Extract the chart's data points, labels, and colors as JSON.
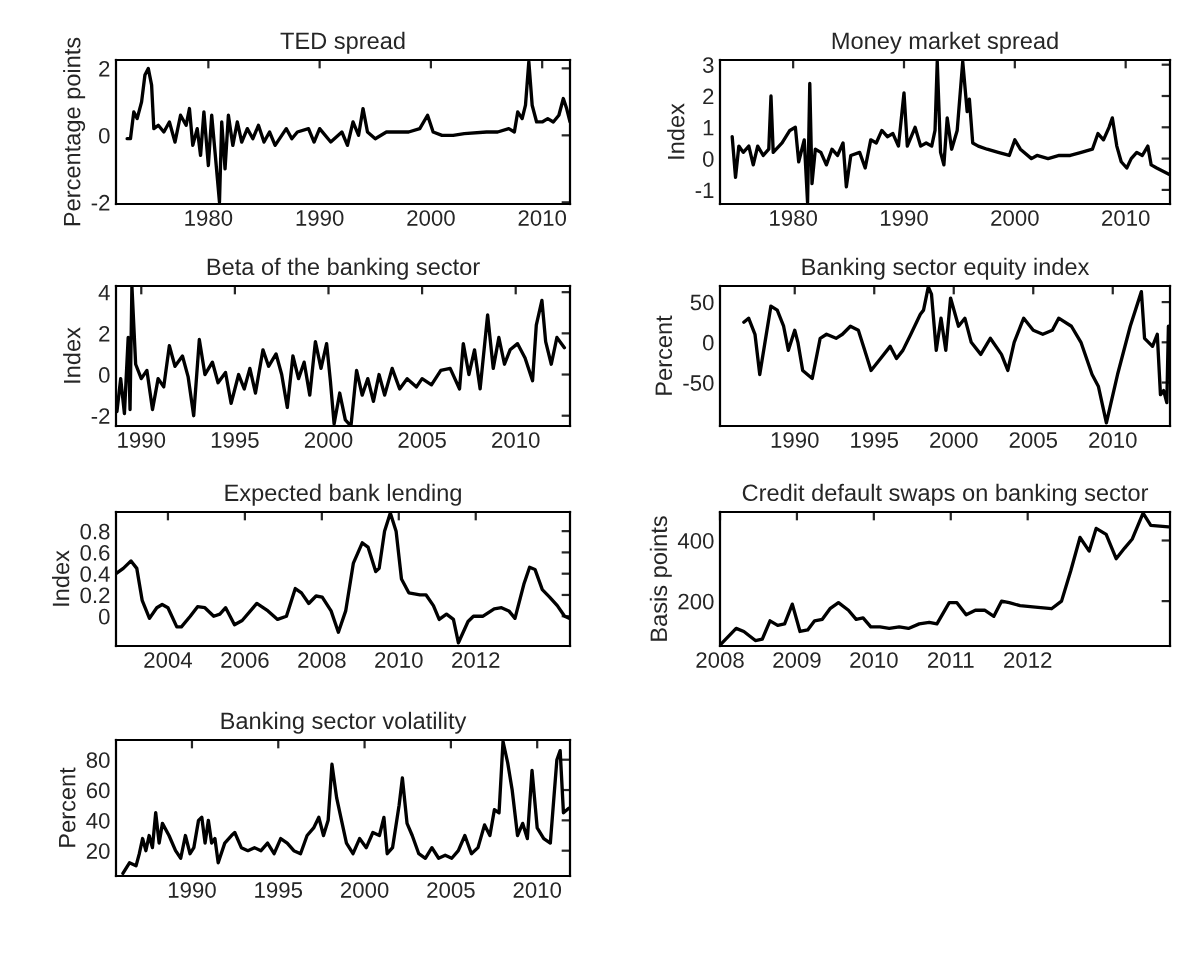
{
  "chart_data": [
    {
      "type": "line",
      "title": "TED spread",
      "ylabel": "Percentage points",
      "xlim": [
        1971.7,
        2012.5
      ],
      "ylim": [
        -2.05,
        2.25
      ],
      "xticks": [
        1980,
        1990,
        2000,
        2010
      ],
      "yticks": [
        -2,
        0,
        2
      ],
      "grid": false,
      "x": [
        1972.7,
        1973.0,
        1973.3,
        1973.6,
        1974.0,
        1974.3,
        1974.6,
        1974.9,
        1975.1,
        1975.5,
        1976,
        1976.5,
        1977,
        1977.5,
        1978,
        1978.3,
        1978.6,
        1979,
        1979.3,
        1979.6,
        1980,
        1980.3,
        1980.6,
        1981,
        1981.2,
        1981.5,
        1981.8,
        1982.2,
        1982.6,
        1983,
        1983.5,
        1984,
        1984.5,
        1985,
        1985.5,
        1986,
        1987,
        1987.5,
        1988,
        1989,
        1989.5,
        1990,
        1991,
        1992,
        1992.5,
        1993,
        1993.5,
        1993.9,
        1994.3,
        1995,
        1996,
        1997,
        1998,
        1999,
        1999.7,
        2000.2,
        2001,
        2002,
        2003,
        2005,
        2006,
        2007,
        2007.5,
        2007.8,
        2008.2,
        2008.5,
        2008.8,
        2009.1,
        2009.5,
        2010,
        2010.5,
        2011,
        2011.5,
        2011.9,
        2012.2,
        2012.5
      ],
      "series": [
        {
          "color": "#000000",
          "values": [
            -0.1,
            -0.1,
            0.7,
            0.5,
            1.0,
            1.8,
            2.0,
            1.5,
            0.2,
            0.3,
            0.1,
            0.4,
            -0.2,
            0.6,
            0.3,
            0.8,
            -0.3,
            0.2,
            -0.6,
            0.7,
            -0.9,
            0.6,
            -0.5,
            -2.0,
            0.4,
            -1.0,
            0.6,
            -0.3,
            0.4,
            -0.2,
            0.2,
            -0.1,
            0.3,
            -0.2,
            0.1,
            -0.3,
            0.2,
            -0.1,
            0.1,
            0.2,
            -0.2,
            0.2,
            -0.2,
            0.1,
            -0.3,
            0.4,
            0.0,
            0.8,
            0.1,
            -0.1,
            0.1,
            0.1,
            0.1,
            0.2,
            0.6,
            0.1,
            0.0,
            0.0,
            0.05,
            0.1,
            0.1,
            0.2,
            0.1,
            0.7,
            0.5,
            0.9,
            2.2,
            0.9,
            0.4,
            0.4,
            0.5,
            0.4,
            0.6,
            1.1,
            0.8,
            0.4
          ]
        }
      ]
    },
    {
      "type": "line",
      "title": "Money market spread",
      "ylabel": "Index",
      "xlim": [
        1973.4,
        2014.0
      ],
      "ylim": [
        -1.45,
        3.15
      ],
      "xticks": [
        1980,
        1990,
        2000,
        2010
      ],
      "yticks": [
        -1,
        0,
        1,
        2,
        3
      ],
      "grid": false,
      "x": [
        1974.5,
        1974.8,
        1975.1,
        1975.5,
        1976,
        1976.4,
        1976.8,
        1977.3,
        1977.8,
        1978.0,
        1978.2,
        1979,
        1979.7,
        1980.2,
        1980.5,
        1981,
        1981.3,
        1981.5,
        1981.7,
        1982,
        1982.5,
        1983,
        1983.5,
        1984,
        1984.5,
        1984.8,
        1985.2,
        1986,
        1986.5,
        1987,
        1987.5,
        1988,
        1988.5,
        1989,
        1989.5,
        1990,
        1990.3,
        1991,
        1991.5,
        1992,
        1992.5,
        1992.8,
        1993.0,
        1993.3,
        1993.6,
        1993.9,
        1994.3,
        1994.8,
        1995.3,
        1995.7,
        1995.9,
        1996.2,
        1996.7,
        1997.5,
        1998.5,
        1999.5,
        2000,
        2000.5,
        2001.5,
        2002,
        2003,
        2004,
        2005,
        2006,
        2007,
        2007.5,
        2008,
        2008.5,
        2008.8,
        2009.2,
        2009.6,
        2010.1,
        2010.5,
        2011,
        2011.5,
        2012.0,
        2012.3,
        2012.8,
        2013.9
      ],
      "series": [
        {
          "color": "#000000",
          "values": [
            0.7,
            -0.6,
            0.4,
            0.2,
            0.4,
            -0.2,
            0.4,
            0.1,
            0.3,
            2.0,
            0.2,
            0.5,
            0.9,
            1.0,
            -0.1,
            0.6,
            -1.4,
            2.4,
            -0.8,
            0.3,
            0.2,
            -0.2,
            0.3,
            0.1,
            0.5,
            -0.9,
            0.1,
            0.2,
            -0.3,
            0.6,
            0.5,
            0.9,
            0.7,
            0.8,
            0.4,
            2.1,
            0.4,
            1.0,
            0.4,
            0.5,
            0.4,
            0.9,
            3.1,
            0.2,
            -0.2,
            1.3,
            0.3,
            0.9,
            3.1,
            1.5,
            1.9,
            0.5,
            0.4,
            0.3,
            0.2,
            0.1,
            0.6,
            0.3,
            0.0,
            0.1,
            0.0,
            0.1,
            0.1,
            0.2,
            0.3,
            0.8,
            0.6,
            1.0,
            1.3,
            0.4,
            -0.1,
            -0.3,
            0.0,
            0.2,
            0.1,
            0.4,
            -0.2,
            -0.3,
            -0.5
          ]
        }
      ]
    },
    {
      "type": "line",
      "title": "Beta of the banking sector",
      "ylabel": "Index",
      "xlim": [
        1988.65,
        2012.9
      ],
      "ylim": [
        -2.5,
        4.3
      ],
      "xticks": [
        1990,
        1995,
        2000,
        2005,
        2010
      ],
      "yticks": [
        -2,
        0,
        2,
        4
      ],
      "grid": false,
      "x": [
        1988.7,
        1988.9,
        1989.1,
        1989.3,
        1989.4,
        1989.5,
        1989.7,
        1990,
        1990.3,
        1990.6,
        1990.9,
        1991.2,
        1991.5,
        1991.8,
        1992.2,
        1992.5,
        1992.8,
        1993.1,
        1993.4,
        1993.8,
        1994.1,
        1994.5,
        1994.8,
        1995.2,
        1995.5,
        1995.8,
        1996.1,
        1996.5,
        1996.8,
        1997.2,
        1997.5,
        1997.8,
        1998.1,
        1998.4,
        1998.7,
        1999,
        1999.3,
        1999.6,
        1999.9,
        2000.1,
        2000.3,
        2000.6,
        2000.9,
        2001.2,
        2001.5,
        2001.8,
        2002.1,
        2002.4,
        2002.7,
        2003,
        2003.4,
        2003.8,
        2004.2,
        2004.7,
        2005,
        2005.5,
        2006,
        2006.5,
        2007,
        2007.2,
        2007.5,
        2007.8,
        2008.1,
        2008.5,
        2008.8,
        2009.1,
        2009.4,
        2009.7,
        2010.1,
        2010.5,
        2010.9,
        2011.1,
        2011.4,
        2011.6,
        2011.9,
        2012.2,
        2012.6
      ],
      "series": [
        {
          "color": "#000000",
          "values": [
            -1.8,
            -0.2,
            -1.9,
            1.8,
            -1.7,
            4.3,
            0.5,
            -0.2,
            0.2,
            -1.7,
            -0.2,
            -0.6,
            1.4,
            0.4,
            0.9,
            -0.1,
            -2.0,
            1.7,
            0.0,
            0.6,
            -0.4,
            0.1,
            -1.4,
            0.0,
            -0.7,
            0.3,
            -0.9,
            1.2,
            0.4,
            1.0,
            0.0,
            -1.6,
            0.9,
            -0.2,
            0.6,
            -1.0,
            1.6,
            0.3,
            1.5,
            -0.3,
            -2.4,
            -0.9,
            -2.2,
            -2.5,
            0.2,
            -1.0,
            -0.2,
            -1.3,
            0.0,
            -1.0,
            0.3,
            -0.7,
            -0.2,
            -0.6,
            -0.2,
            -0.5,
            0.2,
            0.3,
            -0.7,
            1.5,
            0.0,
            1.2,
            -0.7,
            2.9,
            0.3,
            1.8,
            0.5,
            1.2,
            1.5,
            0.8,
            -0.3,
            2.4,
            3.6,
            1.6,
            0.5,
            1.8,
            1.3
          ]
        }
      ]
    },
    {
      "type": "line",
      "title": "Banking sector equity index",
      "ylabel": "Percent",
      "xlim": [
        1985.3,
        2013.6
      ],
      "ylim": [
        -104,
        70
      ],
      "xticks": [
        1990,
        1995,
        2000,
        2005,
        2010
      ],
      "yticks": [
        -50,
        0,
        50
      ],
      "grid": false,
      "x": [
        1986.8,
        1987.1,
        1987.5,
        1987.8,
        1988.5,
        1988.9,
        1989.3,
        1989.6,
        1990.0,
        1990.2,
        1990.5,
        1991.1,
        1991.6,
        1992.0,
        1992.6,
        1993.0,
        1993.5,
        1994.0,
        1994.4,
        1994.8,
        1995.4,
        1996.0,
        1996.4,
        1996.8,
        1997.3,
        1997.9,
        1998.1,
        1998.4,
        1998.6,
        1998.9,
        1999.2,
        1999.5,
        1999.8,
        2000.3,
        2000.7,
        2001.1,
        2001.7,
        2002.3,
        2003.0,
        2003.4,
        2003.8,
        2004.2,
        2004.4,
        2005.0,
        2005.6,
        2006.2,
        2006.6,
        2007.4,
        2008.0,
        2008.7,
        2009.1,
        2009.6,
        2010.3,
        2011.1,
        2011.8,
        2012.0,
        2012.5,
        2012.8,
        2013.0,
        2013.2,
        2013.4,
        2013.5
      ],
      "series": [
        {
          "color": "#000000",
          "values": [
            25,
            30,
            10,
            -40,
            45,
            40,
            20,
            -10,
            15,
            0,
            -35,
            -45,
            5,
            10,
            5,
            10,
            20,
            15,
            -10,
            -35,
            -20,
            -5,
            -20,
            -10,
            10,
            35,
            40,
            69,
            60,
            -10,
            30,
            -10,
            55,
            20,
            30,
            0,
            -15,
            5,
            -15,
            -35,
            0,
            20,
            30,
            15,
            10,
            15,
            30,
            20,
            0,
            -40,
            -55,
            -100,
            -40,
            20,
            63,
            5,
            -5,
            10,
            -65,
            -60,
            -75,
            20
          ]
        }
      ]
    },
    {
      "type": "line",
      "title": "Expected bank lending",
      "ylabel": "Index",
      "xlim": [
        2002.65,
        2014.45
      ],
      "ylim": [
        -0.28,
        0.98
      ],
      "xticks": [
        2004,
        2006,
        2008,
        2010,
        2012
      ],
      "yticks": [
        0,
        0.2,
        0.4,
        0.6,
        0.8
      ],
      "grid": false,
      "x": [
        2002.65,
        2002.84,
        2003.04,
        2003.19,
        2003.33,
        2003.52,
        2003.71,
        2003.85,
        2004.0,
        2004.23,
        2004.35,
        2004.58,
        2004.77,
        2004.96,
        2005.19,
        2005.35,
        2005.5,
        2005.73,
        2005.93,
        2006.31,
        2006.6,
        2006.85,
        2007.08,
        2007.31,
        2007.47,
        2007.66,
        2007.85,
        2008.01,
        2008.24,
        2008.43,
        2008.62,
        2008.82,
        2009.05,
        2009.2,
        2009.4,
        2009.49,
        2009.63,
        2009.78,
        2009.93,
        2010.07,
        2010.26,
        2010.55,
        2010.71,
        2010.9,
        2011.05,
        2011.24,
        2011.42,
        2011.55,
        2011.8,
        2011.94,
        2012.19,
        2012.48,
        2012.67,
        2012.86,
        2013.02,
        2013.25,
        2013.4,
        2013.54,
        2013.73,
        2013.92,
        2014.12,
        2014.31,
        2014.44
      ],
      "series": [
        {
          "color": "#000000",
          "values": [
            0.4,
            0.45,
            0.52,
            0.45,
            0.15,
            -0.02,
            0.08,
            0.11,
            0.08,
            -0.1,
            -0.1,
            0.0,
            0.09,
            0.08,
            0.0,
            0.02,
            0.08,
            -0.08,
            -0.04,
            0.12,
            0.05,
            -0.03,
            0.0,
            0.26,
            0.22,
            0.12,
            0.19,
            0.18,
            0.05,
            -0.15,
            0.05,
            0.5,
            0.69,
            0.65,
            0.42,
            0.45,
            0.8,
            0.97,
            0.8,
            0.35,
            0.22,
            0.2,
            0.2,
            0.1,
            -0.03,
            0.02,
            -0.03,
            -0.25,
            -0.05,
            0.0,
            0.0,
            0.07,
            0.08,
            0.05,
            -0.02,
            0.3,
            0.46,
            0.44,
            0.25,
            0.18,
            0.1,
            0.0,
            -0.02
          ]
        }
      ]
    },
    {
      "type": "line",
      "title": "Credit default swaps on banking sector",
      "ylabel": "Basis points",
      "xlim": [
        2008.0,
        2013.85
      ],
      "ylim": [
        52,
        494
      ],
      "xticks": [
        2008,
        2009,
        2010,
        2011,
        2012
      ],
      "yticks": [
        200,
        400
      ],
      "grid": false,
      "x": [
        2008.0,
        2008.21,
        2008.31,
        2008.46,
        2008.55,
        2008.65,
        2008.75,
        2008.84,
        2008.94,
        2009.04,
        2009.14,
        2009.23,
        2009.33,
        2009.43,
        2009.54,
        2009.67,
        2009.77,
        2009.86,
        2009.96,
        2010.08,
        2010.2,
        2010.33,
        2010.45,
        2010.59,
        2010.72,
        2010.82,
        2010.98,
        2011.08,
        2011.2,
        2011.32,
        2011.44,
        2011.56,
        2011.66,
        2011.76,
        2011.9,
        2012.1,
        2012.31,
        2012.44,
        2012.56,
        2012.68,
        2012.8,
        2012.89,
        2013.02,
        2013.15,
        2013.26,
        2013.36,
        2013.5,
        2013.6,
        2013.83
      ],
      "series": [
        {
          "color": "#000000",
          "values": [
            55,
            110,
            100,
            70,
            75,
            135,
            120,
            125,
            190,
            100,
            105,
            135,
            140,
            175,
            195,
            170,
            140,
            145,
            115,
            115,
            110,
            115,
            110,
            125,
            130,
            125,
            195,
            195,
            155,
            170,
            170,
            150,
            200,
            195,
            185,
            180,
            175,
            200,
            300,
            410,
            365,
            440,
            420,
            340,
            375,
            405,
            490,
            450,
            445
          ]
        }
      ]
    },
    {
      "type": "line",
      "title": "Banking sector volatility",
      "ylabel": "Percent",
      "xlim": [
        1985.6,
        2011.9
      ],
      "ylim": [
        3.3,
        93
      ],
      "xticks": [
        1990,
        1995,
        2000,
        2005,
        2010
      ],
      "yticks": [
        20,
        40,
        60,
        80
      ],
      "grid": false,
      "x": [
        1986.0,
        1986.38,
        1986.76,
        1986.95,
        1987.14,
        1987.33,
        1987.52,
        1987.71,
        1987.9,
        1988.1,
        1988.29,
        1988.67,
        1989.05,
        1989.35,
        1989.62,
        1989.89,
        1990.11,
        1990.38,
        1990.57,
        1990.76,
        1990.95,
        1991.14,
        1991.33,
        1991.52,
        1991.9,
        1992.29,
        1992.48,
        1992.86,
        1993.24,
        1993.62,
        1994.0,
        1994.38,
        1994.76,
        1995.14,
        1995.52,
        1995.9,
        1996.29,
        1996.67,
        1997.05,
        1997.35,
        1997.62,
        1997.89,
        1998.11,
        1998.38,
        1998.57,
        1998.95,
        1999.33,
        1999.71,
        2000.1,
        2000.48,
        2000.86,
        2001.12,
        2001.31,
        2001.62,
        2002.0,
        2002.19,
        2002.46,
        2002.76,
        2003.14,
        2003.52,
        2003.9,
        2004.29,
        2004.67,
        2005.05,
        2005.43,
        2005.81,
        2006.19,
        2006.57,
        2006.95,
        2007.26,
        2007.52,
        2007.79,
        2008.02,
        2008.29,
        2008.55,
        2008.86,
        2009.16,
        2009.43,
        2009.7,
        2010.0,
        2010.38,
        2010.76,
        2011.14,
        2011.33,
        2011.52,
        2011.83
      ],
      "series": [
        {
          "color": "#000000",
          "values": [
            5,
            12,
            10,
            18,
            28,
            20,
            30,
            22,
            45,
            25,
            38,
            30,
            20,
            15,
            30,
            18,
            22,
            40,
            42,
            25,
            40,
            25,
            28,
            12,
            25,
            30,
            32,
            22,
            20,
            22,
            20,
            25,
            18,
            28,
            25,
            20,
            18,
            30,
            35,
            42,
            30,
            40,
            77,
            55,
            45,
            25,
            18,
            28,
            22,
            32,
            30,
            42,
            18,
            22,
            50,
            68,
            38,
            30,
            18,
            15,
            22,
            15,
            17,
            15,
            20,
            30,
            18,
            22,
            37,
            30,
            47,
            45,
            92,
            78,
            60,
            30,
            38,
            28,
            73,
            35,
            28,
            25,
            80,
            86,
            45,
            48
          ]
        }
      ]
    }
  ]
}
